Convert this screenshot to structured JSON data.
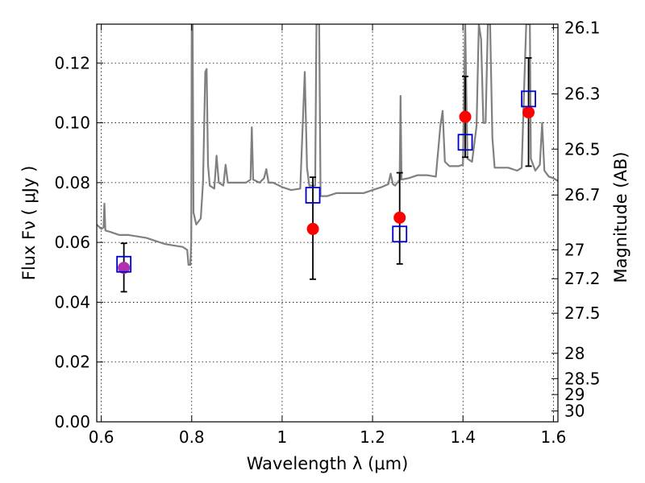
{
  "chart_data": {
    "type": "scatter",
    "xlabel": "Wavelength  λ (μm)",
    "ylabel": "Flux  Fν  ( μJy )",
    "ylabel_right": "Magnitude (AB)",
    "xlim": [
      0.59,
      1.61
    ],
    "ylim": [
      0.0,
      0.133
    ],
    "grid": true,
    "x_ticks": [
      0.6,
      0.8,
      1.0,
      1.2,
      1.4,
      1.6
    ],
    "x_tick_labels": [
      "0.6",
      "0.8",
      "1",
      "1.2",
      "1.4",
      "1.6"
    ],
    "y_ticks": [
      0.0,
      0.02,
      0.04,
      0.06,
      0.08,
      0.1,
      0.12
    ],
    "y_tick_labels": [
      "0.00",
      "0.02",
      "0.04",
      "0.06",
      "0.08",
      "0.10",
      "0.12"
    ],
    "right_ticks": [
      26.1,
      26.3,
      26.5,
      26.7,
      27,
      27.2,
      27.5,
      28,
      28.5,
      29,
      30
    ],
    "right_tick_labels": [
      "26.1",
      "26.3",
      "26.5",
      "26.7",
      "27",
      "27.2",
      "27.5",
      "28",
      "28.5",
      "29",
      "30"
    ],
    "series": [
      {
        "kind": "model_spectrum",
        "color": "#808080",
        "points": [
          [
            0.59,
            0.066
          ],
          [
            0.6,
            0.0645
          ],
          [
            0.605,
            0.065
          ],
          [
            0.607,
            0.073
          ],
          [
            0.609,
            0.064
          ],
          [
            0.62,
            0.0635
          ],
          [
            0.64,
            0.0625
          ],
          [
            0.66,
            0.0625
          ],
          [
            0.68,
            0.062
          ],
          [
            0.7,
            0.0615
          ],
          [
            0.72,
            0.0605
          ],
          [
            0.74,
            0.0595
          ],
          [
            0.76,
            0.059
          ],
          [
            0.78,
            0.0585
          ],
          [
            0.79,
            0.0575
          ],
          [
            0.793,
            0.0525
          ],
          [
            0.797,
            0.0525
          ],
          [
            0.799,
            0.06
          ],
          [
            0.8,
            0.133
          ],
          [
            0.802,
            0.133
          ],
          [
            0.804,
            0.07
          ],
          [
            0.81,
            0.066
          ],
          [
            0.82,
            0.068
          ],
          [
            0.825,
            0.08
          ],
          [
            0.83,
            0.117
          ],
          [
            0.833,
            0.118
          ],
          [
            0.836,
            0.086
          ],
          [
            0.84,
            0.079
          ],
          [
            0.85,
            0.078
          ],
          [
            0.855,
            0.089
          ],
          [
            0.86,
            0.08
          ],
          [
            0.87,
            0.079
          ],
          [
            0.875,
            0.086
          ],
          [
            0.88,
            0.08
          ],
          [
            0.9,
            0.08
          ],
          [
            0.92,
            0.08
          ],
          [
            0.93,
            0.081
          ],
          [
            0.933,
            0.0985
          ],
          [
            0.936,
            0.081
          ],
          [
            0.95,
            0.08
          ],
          [
            0.96,
            0.0815
          ],
          [
            0.965,
            0.0845
          ],
          [
            0.97,
            0.08
          ],
          [
            0.98,
            0.08
          ],
          [
            1.0,
            0.0785
          ],
          [
            1.02,
            0.0775
          ],
          [
            1.04,
            0.078
          ],
          [
            1.05,
            0.117
          ],
          [
            1.055,
            0.085
          ],
          [
            1.06,
            0.079
          ],
          [
            1.073,
            0.079
          ],
          [
            1.076,
            0.133
          ],
          [
            1.082,
            0.133
          ],
          [
            1.085,
            0.0755
          ],
          [
            1.1,
            0.0755
          ],
          [
            1.12,
            0.0765
          ],
          [
            1.14,
            0.0765
          ],
          [
            1.16,
            0.0765
          ],
          [
            1.18,
            0.0765
          ],
          [
            1.2,
            0.0775
          ],
          [
            1.22,
            0.0785
          ],
          [
            1.235,
            0.0795
          ],
          [
            1.24,
            0.083
          ],
          [
            1.245,
            0.0795
          ],
          [
            1.25,
            0.079
          ],
          [
            1.26,
            0.081
          ],
          [
            1.262,
            0.109
          ],
          [
            1.264,
            0.081
          ],
          [
            1.28,
            0.0815
          ],
          [
            1.3,
            0.0825
          ],
          [
            1.32,
            0.0825
          ],
          [
            1.34,
            0.082
          ],
          [
            1.35,
            0.099
          ],
          [
            1.355,
            0.104
          ],
          [
            1.36,
            0.087
          ],
          [
            1.37,
            0.0855
          ],
          [
            1.39,
            0.0855
          ],
          [
            1.4,
            0.086
          ],
          [
            1.405,
            0.133
          ],
          [
            1.41,
            0.088
          ],
          [
            1.42,
            0.087
          ],
          [
            1.43,
            0.099
          ],
          [
            1.435,
            0.133
          ],
          [
            1.44,
            0.128
          ],
          [
            1.445,
            0.1
          ],
          [
            1.45,
            0.1
          ],
          [
            1.455,
            0.133
          ],
          [
            1.46,
            0.133
          ],
          [
            1.465,
            0.095
          ],
          [
            1.47,
            0.085
          ],
          [
            1.48,
            0.085
          ],
          [
            1.5,
            0.085
          ],
          [
            1.52,
            0.084
          ],
          [
            1.53,
            0.085
          ],
          [
            1.535,
            0.11
          ],
          [
            1.54,
            0.133
          ],
          [
            1.548,
            0.133
          ],
          [
            1.55,
            0.088
          ],
          [
            1.56,
            0.084
          ],
          [
            1.57,
            0.086
          ],
          [
            1.575,
            0.1
          ],
          [
            1.58,
            0.084
          ],
          [
            1.59,
            0.082
          ],
          [
            1.6,
            0.0815
          ],
          [
            1.61,
            0.0805
          ]
        ]
      },
      {
        "kind": "observed_flux",
        "color": "#ff0000",
        "points": [
          {
            "x": 0.65,
            "y": 0.0515,
            "yerr_low": 0.0435,
            "yerr_high": 0.0597,
            "color": "#b030b0"
          },
          {
            "x": 1.068,
            "y": 0.0645,
            "yerr_low": 0.0477,
            "yerr_high": 0.0818
          },
          {
            "x": 1.26,
            "y": 0.0683,
            "yerr_low": 0.0528,
            "yerr_high": 0.0833
          },
          {
            "x": 1.405,
            "y": 0.102,
            "yerr_low": 0.0885,
            "yerr_high": 0.1155
          },
          {
            "x": 1.545,
            "y": 0.1035,
            "yerr_low": 0.0855,
            "yerr_high": 0.1217
          }
        ]
      },
      {
        "kind": "model_flux",
        "color": "#0000cc",
        "points": [
          {
            "x": 0.65,
            "y": 0.0527
          },
          {
            "x": 1.068,
            "y": 0.0758
          },
          {
            "x": 1.26,
            "y": 0.0628
          },
          {
            "x": 1.405,
            "y": 0.0935
          },
          {
            "x": 1.545,
            "y": 0.108
          }
        ]
      }
    ]
  }
}
